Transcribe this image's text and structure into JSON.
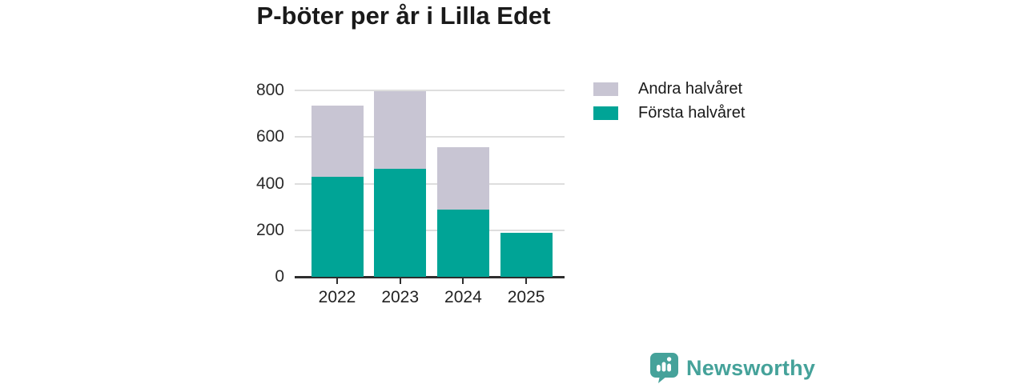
{
  "title": "P-böter per år i Lilla Edet",
  "chart_data": {
    "type": "bar",
    "stacked": true,
    "title": "P-böter per år i Lilla Edet",
    "categories": [
      "2022",
      "2023",
      "2024",
      "2025"
    ],
    "series": [
      {
        "name": "Första halvåret",
        "color": "#00a496",
        "values": [
          430,
          465,
          290,
          190
        ]
      },
      {
        "name": "Andra halvåret",
        "color": "#c8c5d3",
        "values": [
          305,
          330,
          265,
          0
        ]
      }
    ],
    "xlabel": "",
    "ylabel": "",
    "yticks": [
      0,
      200,
      400,
      600,
      800
    ],
    "ylim": [
      0,
      800
    ],
    "grid": true,
    "legend_position": "right",
    "legend_order": [
      "Andra halvåret",
      "Första halvåret"
    ]
  },
  "footer": {
    "brand": "Newsworthy"
  },
  "colors": {
    "axis": "#2e2e2e",
    "gridline": "#dedede",
    "text": "#1a1a1a",
    "brand_teal": "#45a29a",
    "bar_teal": "#00a496",
    "bar_gray": "#c8c5d3"
  }
}
